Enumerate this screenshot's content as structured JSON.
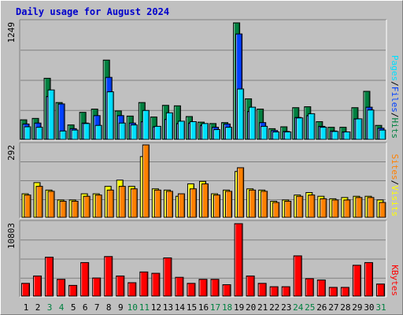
{
  "title": "Daily usage for August 2024",
  "colors": {
    "background": "#c0c0c0",
    "title": "#0000cc",
    "hits": "#008040",
    "files": "#0040ff",
    "pages": "#00e0ff",
    "visits": "#ffff00",
    "sites": "#ff8000",
    "kbytes": "#ff0000",
    "weekend_day": "#008040",
    "weekday_day": "#000000"
  },
  "chart_data": [
    {
      "type": "bar",
      "panel": "top",
      "ymax_label": "1249",
      "ylim": [
        0,
        1249
      ],
      "legend": [
        "Pages",
        "Files",
        "Hits"
      ],
      "legend_separator": "/",
      "categories": [
        "1",
        "2",
        "3",
        "4",
        "5",
        "6",
        "7",
        "8",
        "9",
        "10",
        "11",
        "12",
        "13",
        "14",
        "15",
        "16",
        "17",
        "18",
        "19",
        "20",
        "21",
        "22",
        "23",
        "24",
        "25",
        "26",
        "27",
        "28",
        "29",
        "30",
        "31"
      ],
      "series": [
        {
          "name": "Hits",
          "values": [
            210,
            225,
            655,
            395,
            155,
            290,
            325,
            850,
            305,
            250,
            395,
            240,
            365,
            360,
            245,
            185,
            170,
            180,
            1249,
            435,
            325,
            115,
            135,
            340,
            350,
            190,
            130,
            130,
            340,
            515,
            150
          ]
        },
        {
          "name": "Files",
          "values": [
            165,
            175,
            460,
            380,
            115,
            175,
            255,
            665,
            255,
            175,
            190,
            135,
            215,
            170,
            175,
            150,
            130,
            165,
            1130,
            300,
            180,
            95,
            85,
            235,
            255,
            140,
            90,
            80,
            220,
            345,
            120
          ]
        },
        {
          "name": "Pages",
          "values": [
            135,
            130,
            530,
            90,
            100,
            170,
            150,
            510,
            175,
            155,
            310,
            140,
            285,
            195,
            190,
            170,
            105,
            130,
            540,
            345,
            140,
            80,
            80,
            230,
            275,
            130,
            85,
            80,
            220,
            315,
            100
          ]
        }
      ]
    },
    {
      "type": "bar",
      "panel": "middle",
      "ymax_label": "292",
      "ylim": [
        0,
        292
      ],
      "legend": [
        "Sites",
        "Visits"
      ],
      "legend_separator": "/",
      "categories": [
        "1",
        "2",
        "3",
        "4",
        "5",
        "6",
        "7",
        "8",
        "9",
        "10",
        "11",
        "12",
        "13",
        "14",
        "15",
        "16",
        "17",
        "18",
        "19",
        "20",
        "21",
        "22",
        "23",
        "24",
        "25",
        "26",
        "27",
        "28",
        "29",
        "30",
        "31"
      ],
      "series": [
        {
          "name": "Visits",
          "values": [
            95,
            140,
            110,
            70,
            70,
            95,
            95,
            125,
            150,
            125,
            245,
            115,
            110,
            85,
            135,
            145,
            95,
            110,
            185,
            115,
            110,
            65,
            70,
            90,
            100,
            85,
            75,
            80,
            85,
            85,
            70
          ]
        },
        {
          "name": "Sites",
          "values": [
            90,
            125,
            105,
            65,
            65,
            85,
            90,
            110,
            125,
            115,
            292,
            110,
            105,
            95,
            115,
            135,
            90,
            105,
            200,
            110,
            105,
            60,
            65,
            85,
            90,
            75,
            70,
            70,
            80,
            80,
            60
          ]
        }
      ]
    },
    {
      "type": "bar",
      "panel": "bottom",
      "ymax_label": "10803",
      "ylim": [
        0,
        10803
      ],
      "legend": [
        "KBytes"
      ],
      "categories": [
        "1",
        "2",
        "3",
        "4",
        "5",
        "6",
        "7",
        "8",
        "9",
        "10",
        "11",
        "12",
        "13",
        "14",
        "15",
        "16",
        "17",
        "18",
        "19",
        "20",
        "21",
        "22",
        "23",
        "24",
        "25",
        "26",
        "27",
        "28",
        "29",
        "30",
        "31"
      ],
      "day_color_group": [
        "weekday",
        "weekday",
        "weekend",
        "weekend",
        "weekday",
        "weekday",
        "weekday",
        "weekday",
        "weekday",
        "weekend",
        "weekend",
        "weekday",
        "weekday",
        "weekday",
        "weekday",
        "weekday",
        "weekend",
        "weekend",
        "weekday",
        "weekday",
        "weekday",
        "weekday",
        "weekday",
        "weekend",
        "weekend",
        "weekday",
        "weekday",
        "weekday",
        "weekday",
        "weekday",
        "weekend"
      ],
      "series": [
        {
          "name": "KBytes",
          "values": [
            1900,
            3000,
            5800,
            2500,
            1600,
            5000,
            2700,
            5900,
            3000,
            2000,
            3600,
            3400,
            5700,
            2800,
            1900,
            2500,
            2500,
            1700,
            10803,
            3000,
            1900,
            1400,
            1400,
            6000,
            2600,
            2400,
            1300,
            1300,
            4600,
            5000,
            1800
          ]
        }
      ]
    }
  ]
}
